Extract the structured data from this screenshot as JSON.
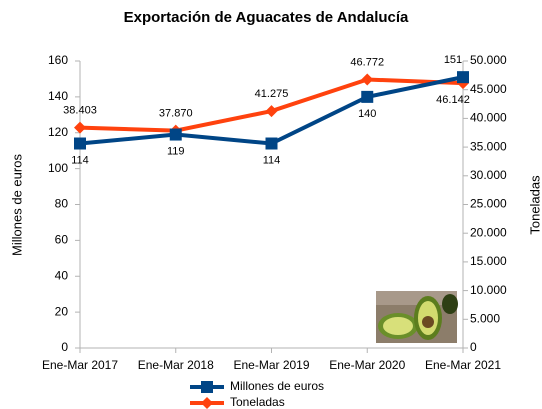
{
  "chart_data": {
    "type": "line",
    "title": "Exportación de Aguacates de Andalucía",
    "ylabel": "Millones de euros",
    "y2label": "Toneladas",
    "categories": [
      "Ene-Mar 2017",
      "Ene-Mar 2018",
      "Ene-Mar 2019",
      "Ene-Mar 2020",
      "Ene-Mar 2021"
    ],
    "series": [
      {
        "name": "Millones de euros",
        "color": "#004586",
        "values": [
          114,
          119,
          114,
          140,
          151
        ]
      },
      {
        "name": "Toneladas",
        "color": "#ff420e",
        "axis": "y2",
        "values": [
          38403,
          37870,
          41275,
          46772,
          46142
        ],
        "value_labels": [
          "38.403",
          "37.870",
          "41.275",
          "46.772",
          "46.142"
        ]
      }
    ],
    "ylim": [
      0,
      160
    ],
    "yticks": [
      0,
      20,
      40,
      60,
      80,
      100,
      120,
      140,
      160
    ],
    "y2lim": [
      0,
      50000
    ],
    "y2ticks": [
      0,
      {
        "value": 5000,
        "label": "5.000"
      },
      {
        "value": 10000,
        "label": "10.000"
      },
      {
        "value": 15000,
        "label": "15.000"
      },
      {
        "value": 20000,
        "label": "20.000"
      },
      {
        "value": 25000,
        "label": "25.000"
      },
      {
        "value": 30000,
        "label": "30.000"
      },
      {
        "value": 35000,
        "label": "35.000"
      },
      {
        "value": 40000,
        "label": "40.000"
      },
      {
        "value": 45000,
        "label": "45.000"
      },
      {
        "value": 50000,
        "label": "50.000"
      }
    ],
    "grid": false,
    "legend": "bottom"
  }
}
